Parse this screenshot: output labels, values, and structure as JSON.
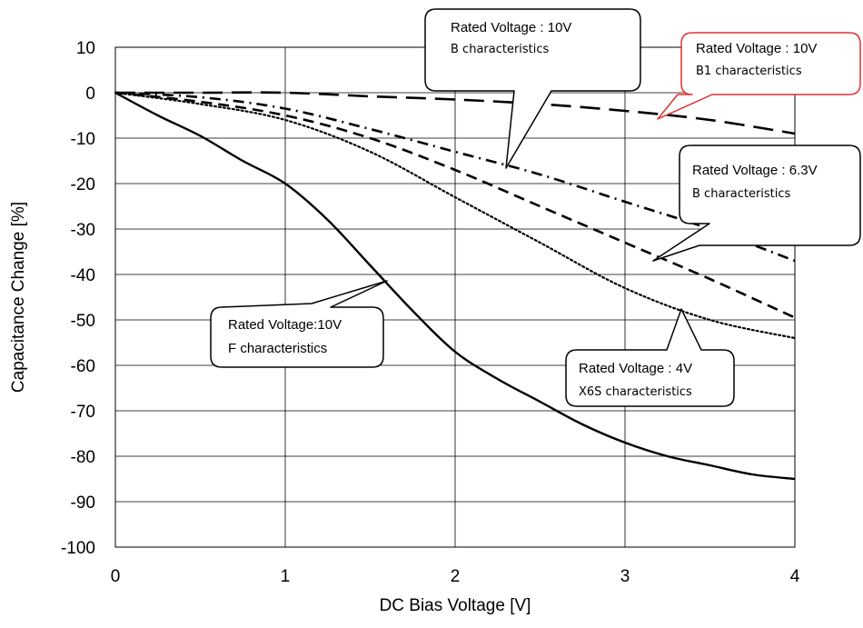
{
  "chart_data": {
    "type": "line",
    "xlabel": "DC Bias Voltage [V]",
    "ylabel": "Capacitance Change [%]",
    "xlim": [
      0,
      4
    ],
    "ylim": [
      -100,
      10
    ],
    "xticks": [
      "0",
      "1",
      "2",
      "3",
      "4"
    ],
    "yticks": [
      "10",
      "0",
      "-10",
      "-20",
      "-30",
      "-40",
      "-50",
      "-60",
      "-70",
      "-80",
      "-90",
      "-100"
    ],
    "grid": true,
    "series": [
      {
        "name": "Rated Voltage:10V F characteristics",
        "style": "solid",
        "x": [
          0,
          0.25,
          0.5,
          0.75,
          1.0,
          1.25,
          1.5,
          1.75,
          2.0,
          2.25,
          2.5,
          2.75,
          3.0,
          3.25,
          3.5,
          3.75,
          4.0
        ],
        "y": [
          0,
          -5,
          -9.5,
          -15,
          -20,
          -28,
          -38,
          -48,
          -57,
          -63,
          -68,
          -73,
          -77,
          -80,
          -82,
          -84,
          -85
        ]
      },
      {
        "name": "Rated Voltage : 10V B1 characteristics",
        "style": "long-dash",
        "x": [
          0,
          0.5,
          1.0,
          1.5,
          2.0,
          2.5,
          3.0,
          3.5,
          4.0
        ],
        "y": [
          0,
          0,
          0,
          -0.8,
          -1.5,
          -2.5,
          -4,
          -6,
          -9
        ]
      },
      {
        "name": "Rated Voltage : 10V B characteristics",
        "style": "dash-dot",
        "x": [
          0,
          0.5,
          1.0,
          1.5,
          2.0,
          2.5,
          3.0,
          3.5,
          4.0
        ],
        "y": [
          0,
          -1,
          -3.5,
          -8,
          -13,
          -18,
          -24,
          -30,
          -37
        ]
      },
      {
        "name": "Rated Voltage : 6.3V B characteristics",
        "style": "dashed",
        "x": [
          0,
          0.5,
          1.0,
          1.5,
          2.0,
          2.5,
          3.0,
          3.5,
          4.0
        ],
        "y": [
          0,
          -2,
          -5,
          -10,
          -17,
          -25,
          -33,
          -41,
          -49.5
        ]
      },
      {
        "name": "Rated Voltage : 4V X6S characteristics",
        "style": "dotted",
        "x": [
          0,
          0.5,
          1.0,
          1.5,
          2.0,
          2.5,
          3.0,
          3.5,
          4.0
        ],
        "y": [
          0,
          -2.5,
          -6,
          -13,
          -23,
          -33,
          -43,
          -50,
          -54
        ]
      }
    ],
    "annotations": [
      {
        "id": "f10",
        "line1": "Rated Voltage:10V",
        "line2": "F characteristics"
      },
      {
        "id": "b10",
        "line1": "Rated Voltage : 10V",
        "line2": "B characteristics"
      },
      {
        "id": "b1_10",
        "line1": "Rated Voltage : 10V",
        "line2": "B1 characteristics"
      },
      {
        "id": "b63",
        "line1": "Rated Voltage : 6.3V",
        "line2": "B characteristics"
      },
      {
        "id": "x6s4",
        "line1": "Rated Voltage : 4V",
        "line2": "X6S characteristics"
      }
    ],
    "colors": {
      "line": "#000000",
      "grid": "#000000",
      "b1_callout_border": "#e03030"
    }
  }
}
